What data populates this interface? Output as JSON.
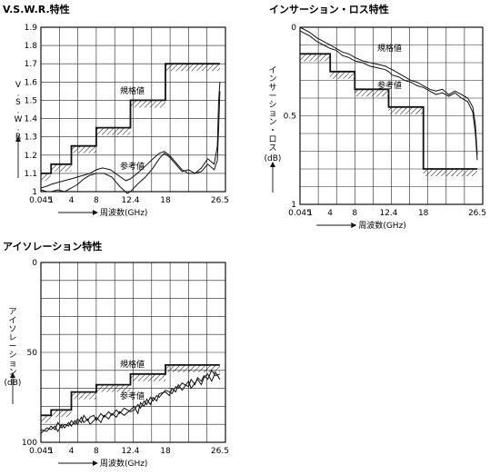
{
  "chart_data": [
    {
      "type": "line",
      "title": "V.S.W.R.特性",
      "ylabel_chars": [
        "V",
        ".",
        "S",
        ".",
        "W",
        ".",
        "R",
        "."
      ],
      "xlabel": "周波数(GHz)",
      "xticks": [
        "0.045",
        "1",
        "4",
        "8",
        "12.4",
        "18",
        "26.5"
      ],
      "yticks": [
        "1",
        "1.1",
        "1.2",
        "1.3",
        "1.4",
        "1.5",
        "1.6",
        "1.7",
        "1.8",
        "1.9"
      ],
      "ylim": [
        1.0,
        1.9
      ],
      "grid": true,
      "annotations": [
        "規格値",
        "参考値"
      ],
      "series": [
        {
          "name": "規格値",
          "points": [
            [
              0.045,
              1.1
            ],
            [
              1,
              1.1
            ],
            [
              1,
              1.15
            ],
            [
              4,
              1.15
            ],
            [
              4,
              1.25
            ],
            [
              8,
              1.25
            ],
            [
              8,
              1.35
            ],
            [
              12.4,
              1.35
            ],
            [
              12.4,
              1.5
            ],
            [
              18,
              1.5
            ],
            [
              18,
              1.7
            ],
            [
              26.5,
              1.7
            ]
          ]
        },
        {
          "name": "参考値",
          "points": [
            [
              0.045,
              1.02
            ],
            [
              0.6,
              1.03
            ],
            [
              1,
              1.04
            ],
            [
              2,
              1.05
            ],
            [
              3,
              1.06
            ],
            [
              4,
              1.07
            ],
            [
              5,
              1.08
            ],
            [
              6,
              1.09
            ],
            [
              7,
              1.1
            ],
            [
              8,
              1.12
            ],
            [
              8.8,
              1.13
            ],
            [
              9.8,
              1.12
            ],
            [
              10.8,
              1.09
            ],
            [
              11.8,
              1.06
            ],
            [
              12.4,
              1.07
            ],
            [
              13.5,
              1.1
            ],
            [
              14.8,
              1.14
            ],
            [
              16,
              1.18
            ],
            [
              17,
              1.21
            ],
            [
              17.8,
              1.22
            ],
            [
              18.6,
              1.2
            ],
            [
              19.6,
              1.16
            ],
            [
              20.6,
              1.12
            ],
            [
              21.6,
              1.1
            ],
            [
              22.6,
              1.1
            ],
            [
              23.6,
              1.11
            ],
            [
              24.6,
              1.15
            ],
            [
              25.6,
              1.12
            ],
            [
              26.1,
              1.17
            ],
            [
              26.3,
              1.35
            ],
            [
              26.5,
              1.55
            ]
          ]
        },
        {
          "name": "",
          "points": [
            [
              0.045,
              1.01
            ],
            [
              0.6,
              1.0
            ],
            [
              1,
              1.0
            ],
            [
              2,
              1.01
            ],
            [
              3,
              1.0
            ],
            [
              4,
              1.02
            ],
            [
              5,
              1.04
            ],
            [
              6,
              1.07
            ],
            [
              7,
              1.09
            ],
            [
              8,
              1.1
            ],
            [
              9,
              1.1
            ],
            [
              10,
              1.08
            ],
            [
              11,
              1.03
            ],
            [
              12,
              0.99
            ],
            [
              12.4,
              1.0
            ],
            [
              13.5,
              1.04
            ],
            [
              14.8,
              1.08
            ],
            [
              16,
              1.13
            ],
            [
              17,
              1.18
            ],
            [
              17.8,
              1.21
            ],
            [
              18.6,
              1.19
            ],
            [
              19.6,
              1.15
            ],
            [
              20.6,
              1.11
            ],
            [
              21.6,
              1.12
            ],
            [
              22.6,
              1.1
            ],
            [
              23.6,
              1.13
            ],
            [
              24.6,
              1.18
            ],
            [
              25.6,
              1.15
            ],
            [
              26.1,
              1.25
            ],
            [
              26.3,
              1.5
            ],
            [
              26.5,
              1.6
            ]
          ]
        }
      ]
    },
    {
      "type": "line",
      "title": "インサーション・ロス特性",
      "ylabel_chars": [
        "イ",
        "ン",
        "サ",
        "ー",
        "シ",
        "ョ",
        "ン",
        "・",
        "ロ",
        "ス"
      ],
      "yunit": "(dB)",
      "xlabel": "周波数(GHz)",
      "xticks": [
        "0.045",
        "1",
        "4",
        "8",
        "12.4",
        "18",
        "26.5"
      ],
      "yticks": [
        "0",
        "0.5",
        "1"
      ],
      "ylim": [
        0,
        1
      ],
      "grid": true,
      "annotations": [
        "参考値",
        "規格値"
      ],
      "series": [
        {
          "name": "規格値",
          "points": [
            [
              0.045,
              0.15
            ],
            [
              4,
              0.15
            ],
            [
              4,
              0.25
            ],
            [
              8,
              0.25
            ],
            [
              8,
              0.35
            ],
            [
              12.4,
              0.35
            ],
            [
              12.4,
              0.45
            ],
            [
              18,
              0.45
            ],
            [
              18,
              0.8
            ],
            [
              26.5,
              0.8
            ]
          ]
        },
        {
          "name": "参考値",
          "points": [
            [
              0.045,
              0.0
            ],
            [
              1,
              0.03
            ],
            [
              2,
              0.06
            ],
            [
              3,
              0.08
            ],
            [
              4,
              0.1
            ],
            [
              5,
              0.12
            ],
            [
              6,
              0.14
            ],
            [
              7,
              0.15
            ],
            [
              8,
              0.17
            ],
            [
              9,
              0.19
            ],
            [
              10,
              0.2
            ],
            [
              11,
              0.21
            ],
            [
              12,
              0.22
            ],
            [
              12.4,
              0.23
            ],
            [
              13,
              0.24
            ],
            [
              14,
              0.26
            ],
            [
              15,
              0.28
            ],
            [
              16,
              0.3
            ],
            [
              17,
              0.31
            ],
            [
              18,
              0.33
            ],
            [
              19,
              0.35
            ],
            [
              20,
              0.36
            ],
            [
              21,
              0.35
            ],
            [
              22,
              0.38
            ],
            [
              23,
              0.36
            ],
            [
              24,
              0.38
            ],
            [
              25,
              0.4
            ],
            [
              25.8,
              0.45
            ],
            [
              26.2,
              0.55
            ],
            [
              26.5,
              0.72
            ]
          ]
        },
        {
          "name": "",
          "points": [
            [
              0.045,
              0.02
            ],
            [
              1,
              0.05
            ],
            [
              2,
              0.08
            ],
            [
              3,
              0.1
            ],
            [
              4,
              0.12
            ],
            [
              5,
              0.13
            ],
            [
              6,
              0.16
            ],
            [
              7,
              0.17
            ],
            [
              8,
              0.19
            ],
            [
              9,
              0.2
            ],
            [
              10,
              0.22
            ],
            [
              11,
              0.23
            ],
            [
              12,
              0.24
            ],
            [
              12.4,
              0.25
            ],
            [
              13,
              0.27
            ],
            [
              14,
              0.28
            ],
            [
              15,
              0.3
            ],
            [
              16,
              0.31
            ],
            [
              17,
              0.33
            ],
            [
              18,
              0.34
            ],
            [
              19,
              0.36
            ],
            [
              20,
              0.38
            ],
            [
              21,
              0.37
            ],
            [
              22,
              0.39
            ],
            [
              23,
              0.37
            ],
            [
              24,
              0.4
            ],
            [
              25,
              0.42
            ],
            [
              25.8,
              0.48
            ],
            [
              26.2,
              0.6
            ],
            [
              26.5,
              0.75
            ]
          ]
        }
      ]
    },
    {
      "type": "line",
      "title": "アイソレーション特性",
      "ylabel_chars": [
        "ア",
        "イ",
        "ソ",
        "レ",
        "ー",
        "シ",
        "ョ",
        "ン"
      ],
      "yunit": "(dB)",
      "xlabel": "周波数(GHz)",
      "xticks": [
        "0.045",
        "1",
        "4",
        "8",
        "12.4",
        "18",
        "26.5"
      ],
      "yticks": [
        "0",
        "50",
        "100"
      ],
      "ylim": [
        0,
        100
      ],
      "grid": true,
      "annotations": [
        "規格値",
        "参考値"
      ],
      "series": [
        {
          "name": "規格値",
          "points": [
            [
              0.045,
              85
            ],
            [
              1,
              85
            ],
            [
              1,
              82
            ],
            [
              4,
              82
            ],
            [
              4,
              72
            ],
            [
              8,
              72
            ],
            [
              8,
              68
            ],
            [
              12.4,
              68
            ],
            [
              12.4,
              62
            ],
            [
              18,
              62
            ],
            [
              18,
              57
            ],
            [
              26.5,
              57
            ]
          ]
        },
        {
          "name": "参考値",
          "points": [
            [
              0.045,
              95
            ],
            [
              0.6,
              92
            ],
            [
              1,
              93
            ],
            [
              1.6,
              91
            ],
            [
              2,
              94
            ],
            [
              2.6,
              90
            ],
            [
              3,
              92
            ],
            [
              3.6,
              89
            ],
            [
              4,
              91
            ],
            [
              4.6,
              88
            ],
            [
              5,
              90
            ],
            [
              5.6,
              86
            ],
            [
              6,
              89
            ],
            [
              6.6,
              87
            ],
            [
              7,
              90
            ],
            [
              7.6,
              88
            ],
            [
              8,
              86
            ],
            [
              8.6,
              89
            ],
            [
              9,
              85
            ],
            [
              9.6,
              87
            ],
            [
              10,
              84
            ],
            [
              10.6,
              86
            ],
            [
              11,
              83
            ],
            [
              11.6,
              85
            ],
            [
              12.4,
              82
            ],
            [
              13,
              80
            ],
            [
              13.6,
              84
            ],
            [
              14,
              78
            ],
            [
              14.6,
              80
            ],
            [
              15,
              76
            ],
            [
              15.6,
              79
            ],
            [
              16,
              75
            ],
            [
              16.6,
              77
            ],
            [
              17,
              73
            ],
            [
              18,
              72
            ],
            [
              18.6,
              74
            ],
            [
              19,
              70
            ],
            [
              19.6,
              72
            ],
            [
              20,
              68
            ],
            [
              20.6,
              71
            ],
            [
              21,
              69
            ],
            [
              21.6,
              66
            ],
            [
              22,
              70
            ],
            [
              22.6,
              67
            ],
            [
              23,
              65
            ],
            [
              23.6,
              68
            ],
            [
              24,
              64
            ],
            [
              24.6,
              62
            ],
            [
              25.2,
              66
            ],
            [
              25.8,
              61
            ],
            [
              26.5,
              65
            ]
          ]
        },
        {
          "name": "",
          "points": [
            [
              0.045,
              93
            ],
            [
              0.6,
              94
            ],
            [
              1,
              91
            ],
            [
              1.6,
              93
            ],
            [
              2,
              89
            ],
            [
              2.6,
              92
            ],
            [
              3,
              90
            ],
            [
              3.6,
              91
            ],
            [
              4,
              88
            ],
            [
              4.6,
              90
            ],
            [
              5,
              87
            ],
            [
              5.6,
              89
            ],
            [
              6,
              85
            ],
            [
              6.6,
              88
            ],
            [
              7,
              86
            ],
            [
              7.6,
              85
            ],
            [
              8,
              88
            ],
            [
              8.6,
              84
            ],
            [
              9,
              86
            ],
            [
              9.6,
              83
            ],
            [
              10,
              85
            ],
            [
              10.6,
              82
            ],
            [
              11,
              84
            ],
            [
              11.6,
              81
            ],
            [
              12.4,
              83
            ],
            [
              13,
              82
            ],
            [
              13.6,
              79
            ],
            [
              14,
              81
            ],
            [
              14.6,
              77
            ],
            [
              15,
              79
            ],
            [
              15.6,
              75
            ],
            [
              16,
              77
            ],
            [
              16.6,
              74
            ],
            [
              17,
              75
            ],
            [
              18,
              71
            ],
            [
              18.6,
              72
            ],
            [
              19,
              73
            ],
            [
              19.6,
              69
            ],
            [
              20,
              70
            ],
            [
              20.6,
              67
            ],
            [
              21,
              68
            ],
            [
              21.6,
              69
            ],
            [
              22,
              65
            ],
            [
              22.6,
              68
            ],
            [
              23,
              64
            ],
            [
              23.6,
              66
            ],
            [
              24,
              63
            ],
            [
              24.6,
              65
            ],
            [
              25.2,
              60
            ],
            [
              25.8,
              63
            ],
            [
              26.5,
              62
            ]
          ]
        }
      ]
    }
  ]
}
